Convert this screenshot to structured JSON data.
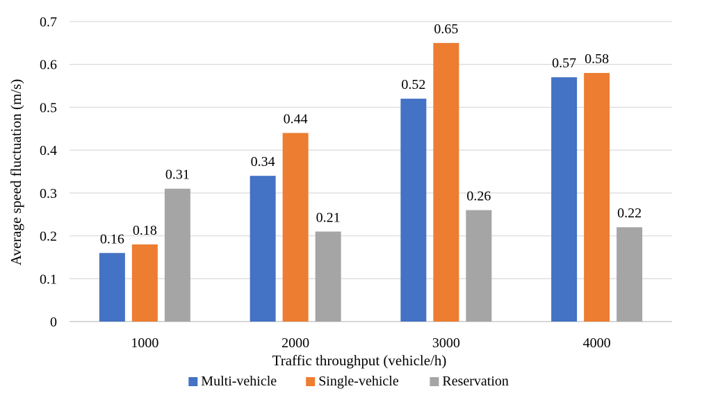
{
  "chart_data": {
    "type": "bar",
    "title": "",
    "xlabel": "Traffic throughput (vehicle/h)",
    "ylabel": "Average speed fluctuation (m/s)",
    "categories": [
      "1000",
      "2000",
      "3000",
      "4000"
    ],
    "ylim": [
      0,
      0.7
    ],
    "yticks": [
      0,
      0.1,
      0.2,
      0.3,
      0.4,
      0.5,
      0.6,
      0.7
    ],
    "ytick_labels": [
      "0",
      "0.1",
      "0.2",
      "0.3",
      "0.4",
      "0.5",
      "0.6",
      "0.7"
    ],
    "grid": true,
    "legend_position": "bottom",
    "series": [
      {
        "name": "Multi-vehicle",
        "color": "#4472C4",
        "values": [
          0.16,
          0.34,
          0.52,
          0.57
        ],
        "labels": [
          "0.16",
          "0.34",
          "0.52",
          "0.57"
        ]
      },
      {
        "name": "Single-vehicle",
        "color": "#ED7D31",
        "values": [
          0.18,
          0.44,
          0.65,
          0.58
        ],
        "labels": [
          "0.18",
          "0.44",
          "0.65",
          "0.58"
        ]
      },
      {
        "name": "Reservation",
        "color": "#A5A5A5",
        "values": [
          0.31,
          0.21,
          0.26,
          0.22
        ],
        "labels": [
          "0.31",
          "0.21",
          "0.26",
          "0.22"
        ]
      }
    ]
  }
}
